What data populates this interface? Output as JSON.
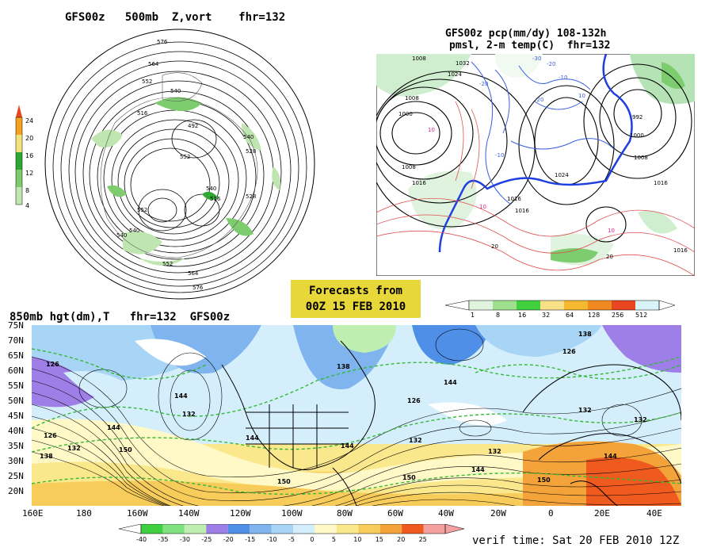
{
  "panel_500mb": {
    "title": "GFS00z   500mb  Z,vort    fhr=132",
    "legend_ticks": [
      "24",
      "20",
      "16",
      "12",
      "8",
      "4"
    ],
    "contour_labels": [
      "576",
      "564",
      "552",
      "540",
      "528",
      "516",
      "504",
      "492",
      "540",
      "528",
      "552",
      "564",
      "576",
      "540",
      "516",
      "540",
      "528",
      "516"
    ],
    "colors": {
      "vort_light": "#bfe6b0",
      "vort_mid": "#7dcc6e",
      "vort_dark": "#2fa833",
      "vort_yellow": "#f3e27a",
      "vort_orange": "#f5a020",
      "vort_red": "#e8461e"
    }
  },
  "panel_precip": {
    "title_line1": "GFS00z pcp(mm/dy) 108-132h",
    "title_line2": "pmsl, 2-m temp(C)  fhr=132",
    "legend_ticks": [
      "1",
      "8",
      "16",
      "32",
      "64",
      "128",
      "256",
      "512"
    ],
    "pressure_labels": [
      "1008",
      "1032",
      "1024",
      "1016",
      "1008",
      "1000",
      "1008",
      "1016",
      "1016",
      "992",
      "1000",
      "1008",
      "1016",
      "1024",
      "1016"
    ],
    "temp_labels": [
      "10",
      "10",
      "10",
      "-20",
      "-10",
      "-30",
      "-20",
      "-20",
      "-10",
      "20",
      "20",
      "10"
    ]
  },
  "forecast_box": {
    "line1": "Forecasts from",
    "line2": "00Z 15 FEB 2010"
  },
  "panel_850mb": {
    "title": "850mb hgt(dm),T   fhr=132  GFS00z",
    "lat_labels": [
      "75N",
      "70N",
      "65N",
      "60N",
      "55N",
      "50N",
      "45N",
      "40N",
      "35N",
      "30N",
      "25N",
      "20N"
    ],
    "lon_labels": [
      "160E",
      "180",
      "160W",
      "140W",
      "120W",
      "100W",
      "80W",
      "60W",
      "40W",
      "20W",
      "0",
      "20E",
      "40E"
    ],
    "height_labels": [
      "126",
      "144",
      "132",
      "126",
      "132",
      "138",
      "144",
      "150",
      "144",
      "144",
      "150",
      "138",
      "132",
      "126",
      "138",
      "138",
      "126",
      "126",
      "132",
      "144",
      "150",
      "138",
      "126",
      "132"
    ],
    "temp_legend_ticks": [
      "-40",
      "-35",
      "-30",
      "-25",
      "-20",
      "-15",
      "-10",
      "-5",
      "0",
      "5",
      "10",
      "15",
      "20",
      "25"
    ],
    "temp_colors": [
      "#3fcf3f",
      "#7fe27f",
      "#bfefb0",
      "#9e7fe8",
      "#4f8fe8",
      "#7fb4ef",
      "#a8d4f5",
      "#d4eefc",
      "#fff9c8",
      "#fbe88c",
      "#f8cc5a",
      "#f4a23a",
      "#ef5a1e",
      "#f5a0a0"
    ]
  },
  "verif_time": "verif time: Sat 20 FEB 2010 12Z"
}
